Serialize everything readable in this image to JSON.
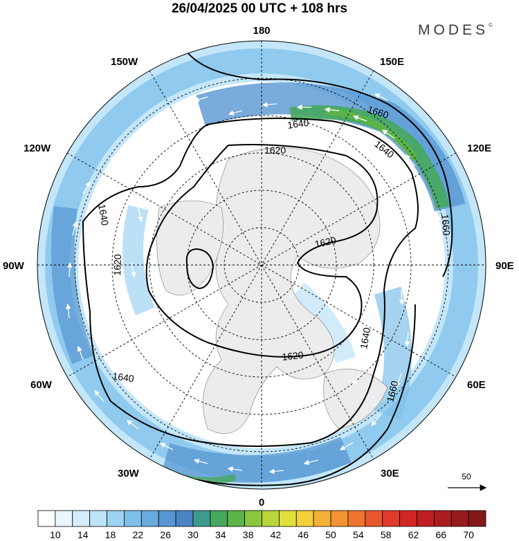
{
  "title": "26/04/2025  00 UTC  + 108 hrs",
  "brand": "MODES",
  "brand_mark": "©",
  "longitude_labels": {
    "top": "180",
    "bottom": "0",
    "left": "90W",
    "right": "90E",
    "upper_left_1": "150W",
    "upper_left_2": "120W",
    "lower_left_1": "60W",
    "lower_left_2": "30W",
    "upper_right_1": "150E",
    "upper_right_2": "120E",
    "lower_right_1": "60E",
    "lower_right_2": "30E"
  },
  "contour_labels": {
    "c1660_a": "1660",
    "c1640_a": "1640",
    "c1640_b": "1640",
    "c1620_a": "1620",
    "c1640_c": "1640",
    "c1620_b": "1620",
    "c1620_c": "1620",
    "c1620_d": "1620",
    "c1640_d": "1640",
    "c1660_b": "1660",
    "c1640_e": "1640",
    "c1660_c": "1660"
  },
  "vector_scale": {
    "label": "50"
  },
  "colorbar": {
    "labels": [
      "10",
      "14",
      "18",
      "22",
      "26",
      "30",
      "34",
      "38",
      "42",
      "46",
      "50",
      "54",
      "58",
      "62",
      "66",
      "70"
    ],
    "colors": [
      "#ffffff",
      "#e9f6fd",
      "#d4effb",
      "#bde3f8",
      "#9fd3f2",
      "#7fc0ea",
      "#68acdf",
      "#5796d2",
      "#4b84c4",
      "#3f9a8e",
      "#46a75e",
      "#5cb447",
      "#8bc63e",
      "#b9d53b",
      "#e0e03a",
      "#f4d13a",
      "#f5b135",
      "#f29433",
      "#ee7530",
      "#e9572d",
      "#e03a2a",
      "#d02626",
      "#bf1f22",
      "#ab1c1f",
      "#971a1d",
      "#82181a"
    ]
  }
}
